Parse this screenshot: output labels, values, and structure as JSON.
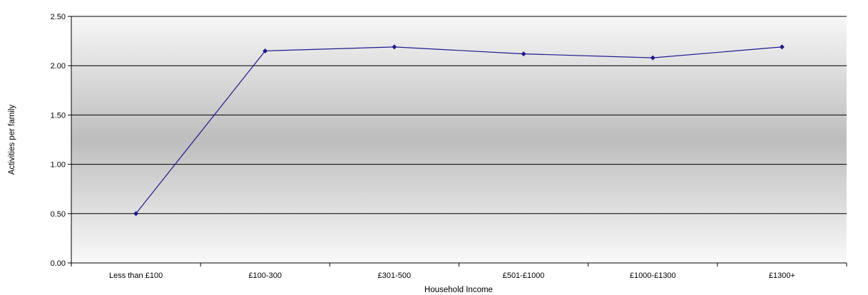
{
  "chart_data": {
    "type": "line",
    "title": "",
    "xlabel": "Household Income",
    "ylabel": "Activities per family",
    "categories": [
      "Less than £100",
      "£100-300",
      "£301-500",
      "£501-£1000",
      "£1000-£1300",
      "£1300+"
    ],
    "series": [
      {
        "values": [
          0.5,
          2.15,
          2.19,
          2.12,
          2.08,
          2.19
        ],
        "color": "#1f1a8c"
      }
    ],
    "ylim": [
      0,
      2.5
    ],
    "yticks": [
      "0.00",
      "0.50",
      "1.00",
      "1.50",
      "2.00",
      "2.50"
    ],
    "grid": true,
    "legend": "none"
  }
}
